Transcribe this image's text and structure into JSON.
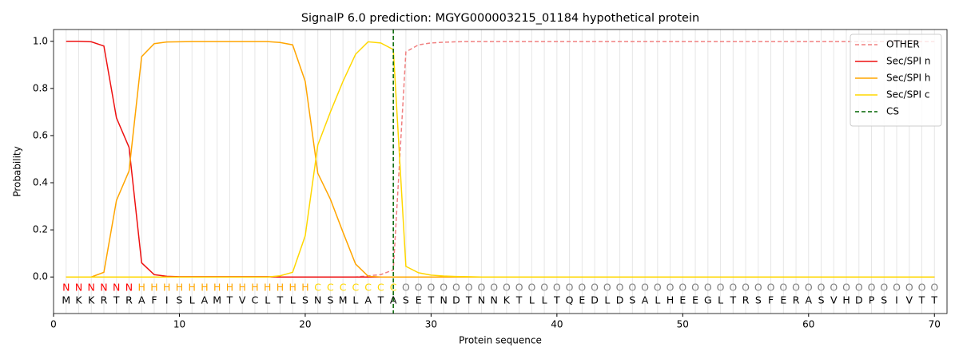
{
  "chart_data": {
    "type": "line",
    "title": "SignalP 6.0 prediction: MGYG000003215_01184 hypothetical protein",
    "x_label": "Protein sequence",
    "y_label": "Probability",
    "xlim": [
      0,
      71
    ],
    "ylim": [
      -0.155,
      1.05
    ],
    "xticks": [
      0,
      10,
      20,
      30,
      40,
      50,
      60,
      70
    ],
    "yticks": [
      {
        "value": 0,
        "label": "0.0"
      },
      0.2,
      0.4,
      0.6,
      0.8,
      {
        "value": 1,
        "label": "1.0"
      }
    ],
    "legend": "upper right",
    "x_grid": true,
    "x": [
      1,
      2,
      3,
      4,
      5,
      6,
      7,
      8,
      9,
      10,
      11,
      12,
      13,
      14,
      15,
      16,
      17,
      18,
      19,
      20,
      21,
      22,
      23,
      24,
      25,
      26,
      27,
      28,
      29,
      30,
      31,
      32,
      33,
      34,
      35,
      36,
      37,
      38,
      39,
      40,
      41,
      42,
      43,
      44,
      45,
      46,
      47,
      48,
      49,
      50,
      51,
      52,
      53,
      54,
      55,
      56,
      57,
      58,
      59,
      60,
      61,
      62,
      63,
      64,
      65,
      66,
      67,
      68,
      69,
      70
    ],
    "residues": [
      "M",
      "K",
      "K",
      "R",
      "T",
      "R",
      "A",
      "F",
      "I",
      "S",
      "L",
      "A",
      "M",
      "T",
      "V",
      "C",
      "L",
      "T",
      "L",
      "S",
      "N",
      "S",
      "M",
      "L",
      "A",
      "T",
      "A",
      "S",
      "E",
      "T",
      "N",
      "D",
      "T",
      "N",
      "N",
      "K",
      "T",
      "L",
      "L",
      "T",
      "Q",
      "E",
      "D",
      "L",
      "D",
      "S",
      "A",
      "L",
      "H",
      "E",
      "E",
      "G",
      "L",
      "T",
      "R",
      "S",
      "F",
      "E",
      "R",
      "A",
      "S",
      "V",
      "H",
      "D",
      "P",
      "S",
      "I",
      "V",
      "T",
      "T"
    ],
    "region_labels": [
      "N",
      "N",
      "N",
      "N",
      "N",
      "N",
      "H",
      "H",
      "H",
      "H",
      "H",
      "H",
      "H",
      "H",
      "H",
      "H",
      "H",
      "H",
      "H",
      "H",
      "C",
      "C",
      "C",
      "C",
      "C",
      "C",
      "C",
      "O",
      "O",
      "O",
      "O",
      "O",
      "O",
      "O",
      "O",
      "O",
      "O",
      "O",
      "O",
      "O",
      "O",
      "O",
      "O",
      "O",
      "O",
      "O",
      "O",
      "O",
      "O",
      "O",
      "O",
      "O",
      "O",
      "O",
      "O",
      "O",
      "O",
      "O",
      "O",
      "O",
      "O",
      "O",
      "O",
      "O",
      "O",
      "O",
      "O",
      "O",
      "O",
      "O"
    ],
    "region_colors": {
      "N": "#ff0000",
      "H": "#ffa500",
      "C": "#ffd700",
      "O": "#808080"
    },
    "series": [
      {
        "name": "OTHER",
        "color": "#f08080",
        "dash": true,
        "values": [
          0,
          0,
          0,
          0,
          0,
          0,
          0,
          0,
          0,
          0,
          0,
          0,
          0,
          0,
          0,
          0,
          0,
          0,
          0,
          0,
          0,
          0,
          0,
          0,
          0.005,
          0.01,
          0.03,
          0.955,
          0.985,
          0.993,
          0.996,
          0.998,
          0.999,
          0.999,
          0.999,
          0.999,
          0.999,
          0.999,
          0.999,
          0.999,
          0.999,
          0.999,
          0.999,
          0.999,
          0.999,
          0.999,
          0.999,
          0.999,
          0.999,
          0.999,
          0.999,
          0.999,
          0.999,
          0.999,
          0.999,
          0.999,
          0.999,
          0.999,
          0.999,
          0.999,
          0.999,
          0.999,
          0.999,
          0.999,
          0.999,
          0.999,
          0.999,
          0.999,
          0.999,
          0.999
        ]
      },
      {
        "name": "Sec/SPI n",
        "color": "#ee1111",
        "dash": false,
        "values": [
          1,
          1,
          0.998,
          0.98,
          0.675,
          0.55,
          0.06,
          0.01,
          0.003,
          0.001,
          0.001,
          0.001,
          0.001,
          0.001,
          0.001,
          0.001,
          0.001,
          0,
          0,
          0,
          0,
          0,
          0,
          0,
          0,
          0,
          0,
          0,
          0,
          0,
          0,
          0,
          0,
          0,
          0,
          0,
          0,
          0,
          0,
          0,
          0,
          0,
          0,
          0,
          0,
          0,
          0,
          0,
          0,
          0,
          0,
          0,
          0,
          0,
          0,
          0,
          0,
          0,
          0,
          0,
          0,
          0,
          0,
          0,
          0,
          0,
          0,
          0,
          0,
          0
        ]
      },
      {
        "name": "Sec/SPI h",
        "color": "#ffa500",
        "dash": false,
        "values": [
          0,
          0,
          0,
          0.02,
          0.325,
          0.45,
          0.935,
          0.99,
          0.997,
          0.998,
          0.999,
          0.999,
          0.999,
          0.999,
          0.999,
          0.999,
          0.999,
          0.995,
          0.985,
          0.83,
          0.44,
          0.33,
          0.19,
          0.055,
          0.003,
          0,
          0,
          0,
          0,
          0,
          0,
          0,
          0,
          0,
          0,
          0,
          0,
          0,
          0,
          0,
          0,
          0,
          0,
          0,
          0,
          0,
          0,
          0,
          0,
          0,
          0,
          0,
          0,
          0,
          0,
          0,
          0,
          0,
          0,
          0,
          0,
          0,
          0,
          0,
          0,
          0,
          0,
          0,
          0,
          0
        ]
      },
      {
        "name": "Sec/SPI c",
        "color": "#ffd700",
        "dash": false,
        "values": [
          0,
          0,
          0,
          0,
          0,
          0,
          0,
          0,
          0,
          0,
          0,
          0,
          0,
          0,
          0,
          0,
          0,
          0.005,
          0.02,
          0.175,
          0.56,
          0.7,
          0.83,
          0.945,
          0.998,
          0.993,
          0.965,
          0.045,
          0.018,
          0.008,
          0.004,
          0.002,
          0.001,
          0,
          0,
          0,
          0,
          0,
          0,
          0,
          0,
          0,
          0,
          0,
          0,
          0,
          0,
          0,
          0,
          0,
          0,
          0,
          0,
          0,
          0,
          0,
          0,
          0,
          0,
          0,
          0,
          0,
          0,
          0,
          0,
          0,
          0,
          0,
          0,
          0
        ]
      }
    ],
    "vlines": [
      {
        "name": "CS",
        "color": "#006400",
        "x": 27
      }
    ]
  }
}
